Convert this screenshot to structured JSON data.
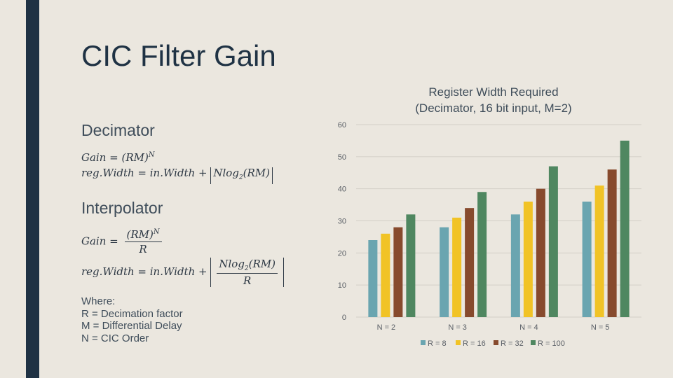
{
  "slide": {
    "title": "CIC Filter Gain",
    "decimator_heading": "Decimator",
    "interpolator_heading": "Interpolator",
    "formulas": {
      "gain_lhs": "Gain =",
      "dec_gain_rhs": "(RM)",
      "dec_gain_exp": "N",
      "regwidth_lhs": "reg.Width = in.Width +",
      "dec_reg_floor": "Nlog",
      "log_sub": "2",
      "log_arg": "(RM)",
      "int_gain_num": "(RM)",
      "int_gain_exp": "N",
      "int_den": "R",
      "int_reg_num": "Nlog",
      "int_reg_arg": "(RM)"
    },
    "where_lines": [
      "Where:",
      "R = Decimation factor",
      "M = Differential Delay",
      "N = CIC Order"
    ]
  },
  "colors": {
    "sidebar": "#1f3244",
    "background": "#ebe7df",
    "R=8": "#6aa5b0",
    "R=16": "#f1c326",
    "R=32": "#874a2d",
    "R=100": "#4f8760"
  },
  "chart_data": {
    "type": "bar",
    "title_lines": [
      "Register Width Required",
      "(Decimator, 16 bit input, M=2)"
    ],
    "categories": [
      "N = 2",
      "N = 3",
      "N = 4",
      "N = 5"
    ],
    "series": [
      {
        "name": "R = 8",
        "values": [
          24,
          28,
          32,
          36
        ]
      },
      {
        "name": "R = 16",
        "values": [
          26,
          31,
          36,
          41
        ]
      },
      {
        "name": "R = 32",
        "values": [
          28,
          34,
          40,
          46
        ]
      },
      {
        "name": "R = 100",
        "values": [
          32,
          39,
          47,
          55
        ]
      }
    ],
    "ylim": [
      0,
      60
    ],
    "yticks": [
      "0",
      "10",
      "20",
      "30",
      "40",
      "50",
      "60"
    ],
    "grid": true,
    "legend": "bottom"
  }
}
